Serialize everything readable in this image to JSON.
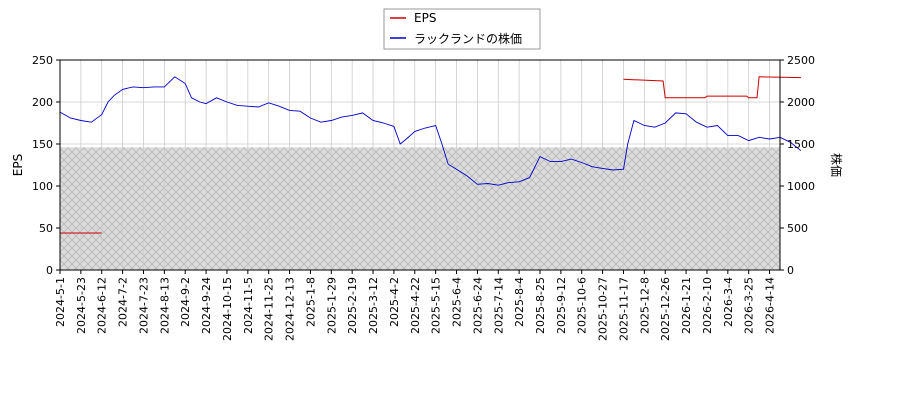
{
  "chart_data": {
    "type": "line",
    "ylabel_left": "EPS",
    "ylabel_right": "株価",
    "ylim_left": [
      0,
      250
    ],
    "ylim_right": [
      0,
      2500
    ],
    "yticks_left": [
      "0",
      "50",
      "100",
      "150",
      "200",
      "250"
    ],
    "yticks_right": [
      "0",
      "500",
      "1000",
      "1500",
      "2000",
      "2500"
    ],
    "xticks": [
      "2024-5-1",
      "2024-5-23",
      "2024-6-12",
      "2024-7-2",
      "2024-7-23",
      "2024-8-13",
      "2024-9-2",
      "2024-9-24",
      "2024-10-15",
      "2024-11-5",
      "2024-11-25",
      "2024-12-13",
      "2025-1-8",
      "2025-1-29",
      "2025-2-19",
      "2025-3-12",
      "2025-4-2",
      "2025-4-22",
      "2025-5-15",
      "2025-6-4",
      "2025-6-24",
      "2025-7-14",
      "2025-8-4",
      "2025-8-25",
      "2025-9-12",
      "2025-10-6",
      "2025-10-27",
      "2025-11-17",
      "2025-12-8",
      "2025-12-26",
      "2026-1-21",
      "2026-2-10",
      "2026-3-4",
      "2026-3-25",
      "2026-4-14"
    ],
    "legend": [
      "EPS",
      "ラックランドの株価"
    ],
    "legend_position": "top-center",
    "grid": true,
    "shaded_region": {
      "axis": "left",
      "from": 0,
      "to": 146
    },
    "series": [
      {
        "name": "EPS",
        "axis": "left",
        "color": "#cc0000",
        "points": [
          [
            0,
            44
          ],
          [
            2,
            44
          ],
          [
            27,
            227
          ],
          [
            28.9,
            225
          ],
          [
            29,
            205
          ],
          [
            30.9,
            205
          ],
          [
            31,
            207
          ],
          [
            32.9,
            207
          ],
          [
            33,
            205
          ],
          [
            33.4,
            205
          ],
          [
            33.5,
            230
          ],
          [
            35.5,
            229
          ]
        ]
      },
      {
        "name": "ラックランドの株価",
        "axis": "right",
        "color": "#0000cc",
        "points": [
          [
            0,
            1880
          ],
          [
            0.5,
            1810
          ],
          [
            1,
            1780
          ],
          [
            1.5,
            1760
          ],
          [
            2,
            1850
          ],
          [
            2.3,
            2000
          ],
          [
            2.6,
            2080
          ],
          [
            3,
            2150
          ],
          [
            3.5,
            2180
          ],
          [
            4,
            2170
          ],
          [
            4.5,
            2180
          ],
          [
            5,
            2180
          ],
          [
            5.5,
            2300
          ],
          [
            6,
            2220
          ],
          [
            6.3,
            2050
          ],
          [
            6.7,
            2000
          ],
          [
            7,
            1980
          ],
          [
            7.5,
            2050
          ],
          [
            8,
            2000
          ],
          [
            8.5,
            1960
          ],
          [
            9,
            1950
          ],
          [
            9.5,
            1940
          ],
          [
            10,
            1990
          ],
          [
            10.5,
            1950
          ],
          [
            11,
            1900
          ],
          [
            11.5,
            1890
          ],
          [
            12,
            1810
          ],
          [
            12.5,
            1760
          ],
          [
            13,
            1780
          ],
          [
            13.5,
            1820
          ],
          [
            14,
            1840
          ],
          [
            14.5,
            1870
          ],
          [
            15,
            1780
          ],
          [
            15.5,
            1750
          ],
          [
            16,
            1710
          ],
          [
            16.3,
            1500
          ],
          [
            16.6,
            1560
          ],
          [
            17,
            1650
          ],
          [
            17.5,
            1690
          ],
          [
            18,
            1720
          ],
          [
            18.3,
            1500
          ],
          [
            18.6,
            1260
          ],
          [
            19,
            1200
          ],
          [
            19.5,
            1120
          ],
          [
            20,
            1020
          ],
          [
            20.5,
            1030
          ],
          [
            21,
            1010
          ],
          [
            21.5,
            1040
          ],
          [
            22,
            1050
          ],
          [
            22.5,
            1100
          ],
          [
            23,
            1350
          ],
          [
            23.5,
            1290
          ],
          [
            24,
            1290
          ],
          [
            24.5,
            1320
          ],
          [
            25,
            1280
          ],
          [
            25.5,
            1230
          ],
          [
            26,
            1210
          ],
          [
            26.5,
            1190
          ],
          [
            27,
            1200
          ],
          [
            27.2,
            1500
          ],
          [
            27.5,
            1780
          ],
          [
            28,
            1720
          ],
          [
            28.5,
            1700
          ],
          [
            29,
            1750
          ],
          [
            29.5,
            1870
          ],
          [
            30,
            1860
          ],
          [
            30.5,
            1760
          ],
          [
            31,
            1700
          ],
          [
            31.5,
            1720
          ],
          [
            32,
            1600
          ],
          [
            32.5,
            1600
          ],
          [
            33,
            1540
          ],
          [
            33.5,
            1580
          ],
          [
            34,
            1560
          ],
          [
            34.5,
            1580
          ],
          [
            35,
            1520
          ],
          [
            35.5,
            1420
          ]
        ]
      }
    ]
  }
}
